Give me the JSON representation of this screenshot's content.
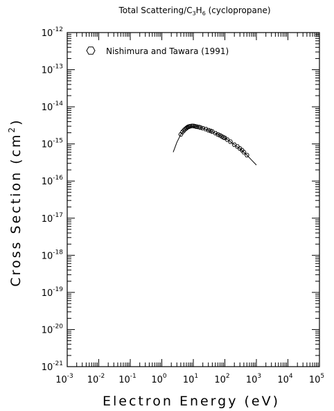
{
  "chart_data": {
    "type": "scatter",
    "title": "Total Scattering/C3H6 (cyclopropane)",
    "title_parts": {
      "pre": "Total Scattering/C",
      "sub1": "3",
      "mid": "H",
      "sub2": "6",
      "post": " (cyclopropane)"
    },
    "xlabel": "Electron Energy (eV)",
    "ylabel_parts": {
      "main": "Cross Section (cm",
      "sup": "2",
      "end": ")"
    },
    "x_scale": "log",
    "y_scale": "log",
    "xlim": [
      0.001,
      100000
    ],
    "ylim": [
      1e-21,
      1e-12
    ],
    "x_ticks": [
      {
        "base": "10",
        "exp": "-3"
      },
      {
        "base": "10",
        "exp": "-2"
      },
      {
        "base": "10",
        "exp": "-1"
      },
      {
        "base": "10",
        "exp": "0"
      },
      {
        "base": "10",
        "exp": "1"
      },
      {
        "base": "10",
        "exp": "2"
      },
      {
        "base": "10",
        "exp": "3"
      },
      {
        "base": "10",
        "exp": "4"
      },
      {
        "base": "10",
        "exp": "5"
      }
    ],
    "y_ticks": [
      {
        "base": "10",
        "exp": "-21"
      },
      {
        "base": "10",
        "exp": "-20"
      },
      {
        "base": "10",
        "exp": "-19"
      },
      {
        "base": "10",
        "exp": "-18"
      },
      {
        "base": "10",
        "exp": "-17"
      },
      {
        "base": "10",
        "exp": "-16"
      },
      {
        "base": "10",
        "exp": "-15"
      },
      {
        "base": "10",
        "exp": "-14"
      },
      {
        "base": "10",
        "exp": "-13"
      },
      {
        "base": "10",
        "exp": "-12"
      }
    ],
    "grid": false,
    "legend_position": "top-left",
    "series": [
      {
        "name": "Nishimura and Tawara (1991)",
        "marker": "hexagon",
        "points": [
          [
            4.0,
            1.8e-15
          ],
          [
            4.5,
            2.1e-15
          ],
          [
            5.0,
            2.3e-15
          ],
          [
            5.5,
            2.5e-15
          ],
          [
            6.0,
            2.65e-15
          ],
          [
            6.5,
            2.8e-15
          ],
          [
            7.0,
            2.9e-15
          ],
          [
            7.5,
            2.95e-15
          ],
          [
            8.0,
            3e-15
          ],
          [
            9.0,
            3.05e-15
          ],
          [
            10.0,
            3.05e-15
          ],
          [
            11.0,
            3e-15
          ],
          [
            12.0,
            2.95e-15
          ],
          [
            13.0,
            2.9e-15
          ],
          [
            15.0,
            2.85e-15
          ],
          [
            17.0,
            2.75e-15
          ],
          [
            20.0,
            2.65e-15
          ],
          [
            25.0,
            2.5e-15
          ],
          [
            30.0,
            2.35e-15
          ],
          [
            35.0,
            2.25e-15
          ],
          [
            40.0,
            2.15e-15
          ],
          [
            50.0,
            1.95e-15
          ],
          [
            60.0,
            1.8e-15
          ],
          [
            70.0,
            1.7e-15
          ],
          [
            80.0,
            1.6e-15
          ],
          [
            90.0,
            1.5e-15
          ],
          [
            100.0,
            1.45e-15
          ],
          [
            120.0,
            1.3e-15
          ],
          [
            150.0,
            1.15e-15
          ],
          [
            200.0,
            9.5e-16
          ],
          [
            250.0,
            8.5e-16
          ],
          [
            300.0,
            7.5e-16
          ],
          [
            350.0,
            6.8e-16
          ],
          [
            400.0,
            6e-16
          ],
          [
            500.0,
            5e-16
          ]
        ]
      },
      {
        "name": "",
        "style": "line",
        "points": [
          [
            2.3,
            6e-16
          ],
          [
            3.0,
            1.1e-15
          ],
          [
            4.0,
            1.8e-15
          ],
          [
            5.0,
            2.3e-15
          ],
          [
            6.0,
            2.65e-15
          ],
          [
            7.0,
            2.9e-15
          ],
          [
            8.0,
            3e-15
          ],
          [
            10.0,
            3e-15
          ],
          [
            12.0,
            2.95e-15
          ],
          [
            15.0,
            2.85e-15
          ],
          [
            20.0,
            2.65e-15
          ],
          [
            30.0,
            2.35e-15
          ],
          [
            50.0,
            1.95e-15
          ],
          [
            70.0,
            1.7e-15
          ],
          [
            100.0,
            1.45e-15
          ],
          [
            150.0,
            1.15e-15
          ],
          [
            200.0,
            9.5e-16
          ],
          [
            300.0,
            7.5e-16
          ],
          [
            500.0,
            5e-16
          ],
          [
            700.0,
            3.7e-16
          ],
          [
            1000.0,
            2.7e-16
          ]
        ]
      }
    ]
  }
}
